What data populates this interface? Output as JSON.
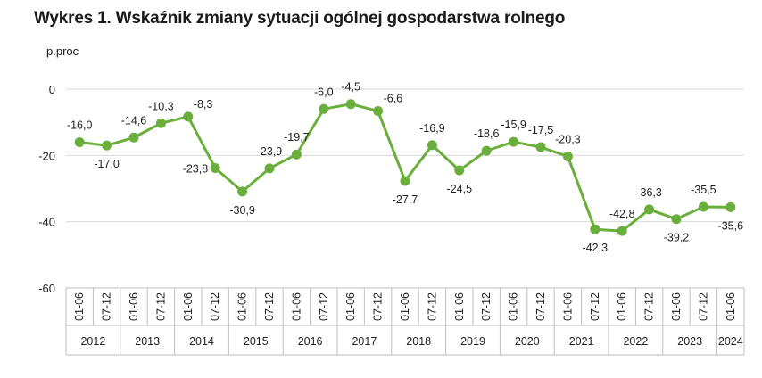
{
  "title": "Wykres 1. Wskaźnik zmiany sytuacji ogólnej gospodarstwa rolnego",
  "chart_data": {
    "type": "line",
    "title": "Wykres 1. Wskaźnik zmiany sytuacji ogólnej gospodarstwa rolnego",
    "ylabel": "p.proc",
    "xlabel": "",
    "ylim": [
      -60,
      0
    ],
    "yticks": [
      "0",
      "-20",
      "-40",
      "-60"
    ],
    "grid": true,
    "legend": "none",
    "line_color": "#6aae3c",
    "categories": [
      "01-06",
      "07-12",
      "01-06",
      "07-12",
      "01-06",
      "07-12",
      "01-06",
      "07-12",
      "01-06",
      "07-12",
      "01-06",
      "07-12",
      "01-06",
      "07-12",
      "01-06",
      "07-12",
      "01-06",
      "07-12",
      "01-06",
      "07-12",
      "01-06",
      "07-12",
      "01-06",
      "07-12",
      "01-06"
    ],
    "years": [
      "2012",
      "2013",
      "2014",
      "2015",
      "2016",
      "2017",
      "2018",
      "2019",
      "2020",
      "2021",
      "2022",
      "2023",
      "2024"
    ],
    "values": [
      -16.0,
      -17.0,
      -14.6,
      -10.3,
      -8.3,
      -23.8,
      -30.9,
      -23.9,
      -19.7,
      -6.0,
      -4.5,
      -6.6,
      -27.7,
      -16.9,
      -24.5,
      -18.6,
      -15.9,
      -17.5,
      -20.3,
      -42.3,
      -42.8,
      -36.3,
      -39.2,
      -35.5,
      -35.6
    ],
    "value_labels": [
      "-16,0",
      "-17,0",
      "-14,6",
      "-10,3",
      "-8,3",
      "-23,8",
      "-30,9",
      "-23,9",
      "-19,7",
      "-6,0",
      "-4,5",
      "-6,6",
      "-27,7",
      "-16,9",
      "-24,5",
      "-18,6",
      "-15,9",
      "-17,5",
      "-20,3",
      "-42,3",
      "-42,8",
      "-36,3",
      "-39,2",
      "-35,5",
      "-35,6"
    ]
  }
}
